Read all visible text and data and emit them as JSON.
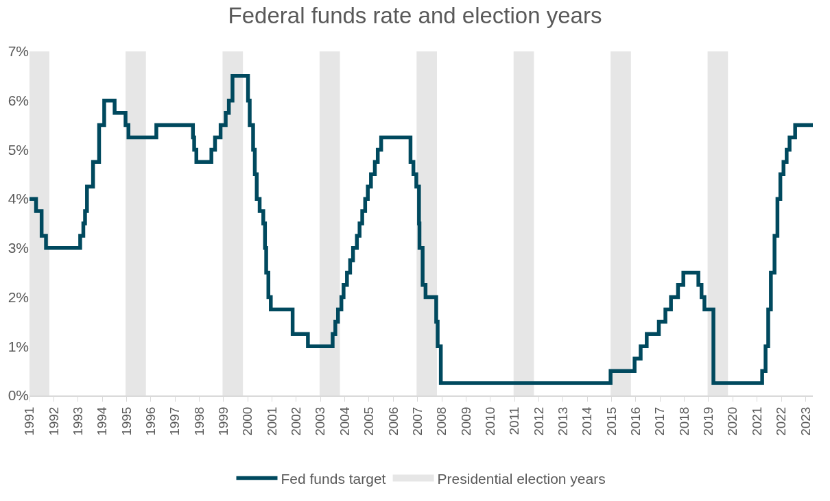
{
  "chart_data": {
    "type": "step",
    "title": "Federal funds rate and election years",
    "xlim": [
      1991,
      2023.3
    ],
    "xticks": [
      1991,
      1992,
      1993,
      1994,
      1995,
      1996,
      1997,
      1998,
      1999,
      2000,
      2001,
      2002,
      2003,
      2004,
      2005,
      2006,
      2007,
      2008,
      2009,
      2010,
      2011,
      2012,
      2013,
      2014,
      2015,
      2016,
      2017,
      2018,
      2019,
      2020,
      2021,
      2022,
      2023
    ],
    "ylim": [
      0,
      7
    ],
    "yticks": [
      {
        "value": 0,
        "label": "0%"
      },
      {
        "value": 1,
        "label": "1%"
      },
      {
        "value": 2,
        "label": "2%"
      },
      {
        "value": 3,
        "label": "3%"
      },
      {
        "value": 4,
        "label": "4%"
      },
      {
        "value": 5,
        "label": "5%"
      },
      {
        "value": 6,
        "label": "6%"
      },
      {
        "value": 7,
        "label": "7%"
      }
    ],
    "grid": false,
    "legend": "bottom",
    "series": [
      {
        "name": "Fed funds target",
        "color": "#00495e",
        "x": [
          1991.0,
          1991.27,
          1991.5,
          1991.68,
          1993.09,
          1993.22,
          1993.29,
          1993.37,
          1993.62,
          1993.87,
          1994.08,
          1994.51,
          1994.96,
          1995.08,
          1996.23,
          1997.74,
          1997.79,
          1997.88,
          1998.5,
          1998.65,
          1998.88,
          1999.09,
          1999.22,
          1999.37,
          2000.01,
          2000.08,
          2000.22,
          2000.29,
          2000.37,
          2000.49,
          2000.64,
          2000.71,
          2000.76,
          2000.85,
          2000.95,
          2001.85,
          2002.48,
          2003.5,
          2003.61,
          2003.72,
          2003.86,
          2003.95,
          2004.09,
          2004.22,
          2004.34,
          2004.5,
          2004.61,
          2004.72,
          2004.84,
          2004.95,
          2005.08,
          2005.24,
          2005.36,
          2005.5,
          2006.71,
          2006.83,
          2006.95,
          2007.06,
          2007.08,
          2007.21,
          2007.33,
          2007.77,
          2007.83,
          2007.96,
          2014.96,
          2015.95,
          2016.2,
          2016.45,
          2016.95,
          2017.22,
          2017.45,
          2017.74,
          2017.96,
          2018.58,
          2018.71,
          2018.83,
          2019.2,
          2021.21,
          2021.35,
          2021.46,
          2021.57,
          2021.72,
          2021.84,
          2021.96,
          2022.09,
          2022.22,
          2022.34,
          2022.57,
          2023.3
        ],
        "values": [
          4.0,
          3.75,
          3.25,
          3.0,
          3.25,
          3.5,
          3.75,
          4.25,
          4.75,
          5.5,
          6.0,
          5.75,
          5.5,
          5.25,
          5.5,
          5.25,
          5.0,
          4.75,
          5.0,
          5.25,
          5.5,
          5.75,
          6.0,
          6.5,
          6.0,
          5.5,
          5.0,
          4.5,
          4.0,
          3.75,
          3.5,
          3.0,
          2.5,
          2.0,
          1.75,
          1.25,
          1.0,
          1.25,
          1.5,
          1.75,
          2.0,
          2.25,
          2.5,
          2.75,
          3.0,
          3.25,
          3.5,
          3.75,
          4.0,
          4.25,
          4.5,
          4.75,
          5.0,
          5.25,
          4.75,
          4.5,
          4.25,
          3.5,
          3.0,
          2.25,
          2.0,
          1.5,
          1.0,
          0.25,
          0.5,
          0.75,
          1.0,
          1.25,
          1.5,
          1.75,
          2.0,
          2.25,
          2.5,
          2.25,
          2.0,
          1.75,
          0.25,
          0.5,
          1.0,
          1.75,
          2.5,
          3.25,
          4.0,
          4.5,
          4.75,
          5.0,
          5.25,
          5.5,
          5.5
        ]
      }
    ],
    "bands": [
      {
        "axis": "x",
        "from": 1991.0,
        "to": 1991.82,
        "label": "Presidential election years",
        "color": "#e6e6e6"
      },
      {
        "axis": "x",
        "from": 1994.96,
        "to": 1995.8,
        "color": "#e6e6e6"
      },
      {
        "axis": "x",
        "from": 1998.96,
        "to": 1999.8,
        "color": "#e6e6e6"
      },
      {
        "axis": "x",
        "from": 2002.96,
        "to": 2003.8,
        "color": "#e6e6e6"
      },
      {
        "axis": "x",
        "from": 2006.96,
        "to": 2007.8,
        "color": "#e6e6e6"
      },
      {
        "axis": "x",
        "from": 2010.96,
        "to": 2011.8,
        "color": "#e6e6e6"
      },
      {
        "axis": "x",
        "from": 2014.96,
        "to": 2015.8,
        "color": "#e6e6e6"
      },
      {
        "axis": "x",
        "from": 2018.96,
        "to": 2019.8,
        "color": "#e6e6e6"
      }
    ]
  }
}
